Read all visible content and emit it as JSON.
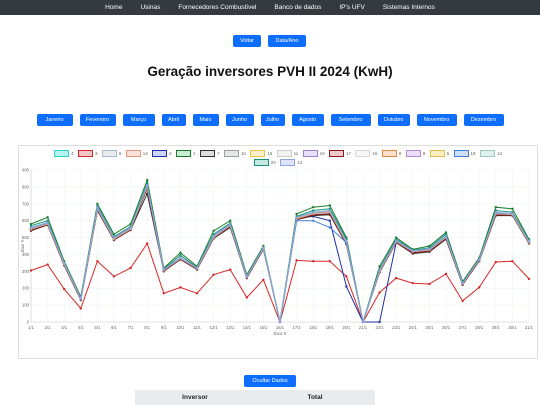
{
  "nav": [
    "Home",
    "Usinas",
    "Fornecedores Combustível",
    "Banco de dados",
    "IP's UFV",
    "Sistemas Internos"
  ],
  "buttons": {
    "voltar": "Voltar",
    "data_ano": "Data/Ano",
    "ocultar": "Ocultar Dados"
  },
  "page_title": "Geração inversores PVH II 2024 (KwH)",
  "months": [
    "Janeiro",
    "Fevereiro",
    "Março",
    "Abril",
    "Maio",
    "Junho",
    "Julho",
    "Agosto",
    "Setembro",
    "Outubro",
    "Novembro",
    "Dezembro"
  ],
  "table": {
    "headers": [
      "Inversor",
      "Total"
    ]
  },
  "colors": {
    "primary": "#0d6efd",
    "navbar": "#343a40"
  },
  "chart_data": {
    "type": "line",
    "xlabel": "Eixo X",
    "ylabel": "Eixo Y",
    "ylim": [
      0,
      900
    ],
    "yticks": [
      0,
      100,
      200,
      300,
      400,
      500,
      600,
      700,
      800,
      900
    ],
    "categories": [
      "1/1",
      "2/1",
      "3/1",
      "4/1",
      "5/1",
      "6/1",
      "7/1",
      "8/1",
      "9/1",
      "10/1",
      "11/1",
      "12/1",
      "13/1",
      "14/1",
      "15/1",
      "16/1",
      "17/1",
      "18/1",
      "19/1",
      "20/1",
      "21/1",
      "22/1",
      "23/1",
      "24/1",
      "25/1",
      "26/1",
      "27/1",
      "28/1",
      "29/1",
      "30/1",
      "31/1"
    ],
    "legend_position": "top",
    "series": [
      {
        "name": "4",
        "color": "#2dd4c8",
        "fill": "#b8f2ee",
        "values": [
          560,
          590,
          350,
          140,
          680,
          500,
          560,
          810,
          310,
          380,
          320,
          510,
          580,
          270,
          440,
          0,
          620,
          650,
          660,
          480,
          0,
          310,
          480,
          420,
          430,
          510,
          230,
          370,
          650,
          640,
          480
        ]
      },
      {
        "name": "3",
        "color": "#d62728",
        "fill": "#f5c6c6",
        "values": [
          305,
          340,
          195,
          80,
          360,
          270,
          320,
          465,
          170,
          205,
          170,
          280,
          310,
          145,
          250,
          0,
          365,
          360,
          360,
          270,
          0,
          175,
          260,
          230,
          225,
          285,
          125,
          205,
          355,
          360,
          255
        ]
      },
      {
        "name": "6",
        "color": "#aab7c4",
        "fill": "#e8edf2",
        "values": [
          550,
          580,
          340,
          135,
          670,
          490,
          550,
          800,
          305,
          375,
          315,
          500,
          570,
          265,
          435,
          0,
          610,
          640,
          650,
          470,
          0,
          300,
          475,
          415,
          425,
          500,
          225,
          365,
          640,
          635,
          470
        ]
      },
      {
        "name": "14",
        "color": "#e8927c",
        "fill": "#fbe3dc",
        "values": [
          545,
          578,
          338,
          133,
          668,
          488,
          548,
          798,
          303,
          373,
          313,
          498,
          568,
          263,
          433,
          0,
          608,
          638,
          648,
          468,
          0,
          298,
          473,
          413,
          423,
          498,
          223,
          363,
          638,
          633,
          468
        ]
      },
      {
        "name": "2",
        "color": "#1f2fa6",
        "fill": "#cfd4f2",
        "values": [
          555,
          585,
          345,
          138,
          675,
          495,
          555,
          805,
          308,
          378,
          318,
          505,
          575,
          268,
          438,
          0,
          615,
          625,
          600,
          210,
          0,
          0,
          470,
          410,
          420,
          505,
          228,
          368,
          645,
          638,
          475
        ]
      },
      {
        "name": "1",
        "color": "#1a7d2b",
        "fill": "#c9ecd0",
        "values": [
          580,
          620,
          360,
          150,
          700,
          520,
          580,
          840,
          320,
          410,
          330,
          540,
          600,
          280,
          450,
          0,
          640,
          680,
          690,
          500,
          0,
          330,
          500,
          430,
          450,
          530,
          240,
          380,
          680,
          670,
          490
        ]
      },
      {
        "name": "7",
        "color": "#333333",
        "fill": "#dddddd",
        "values": [
          540,
          575,
          335,
          130,
          660,
          485,
          545,
          760,
          300,
          370,
          310,
          495,
          560,
          260,
          430,
          0,
          605,
          630,
          635,
          460,
          0,
          295,
          470,
          405,
          415,
          490,
          220,
          360,
          630,
          630,
          465
        ]
      },
      {
        "name": "10",
        "color": "#9aa39a",
        "fill": "#e5e8e5",
        "values": [
          548,
          582,
          342,
          136,
          672,
          492,
          552,
          802,
          306,
          376,
          316,
          502,
          572,
          266,
          436,
          0,
          612,
          642,
          652,
          472,
          0,
          302,
          476,
          416,
          426,
          502,
          226,
          366,
          642,
          636,
          472
        ]
      },
      {
        "name": "16",
        "color": "#e6c44d",
        "fill": "#fbf0c9",
        "values": [
          552,
          584,
          344,
          137,
          674,
          494,
          554,
          804,
          307,
          377,
          317,
          504,
          574,
          267,
          437,
          0,
          614,
          644,
          654,
          474,
          0,
          304,
          478,
          418,
          428,
          504,
          227,
          367,
          644,
          637,
          474
        ]
      },
      {
        "name": "11",
        "color": "#cccccc",
        "fill": "#f2f2f2",
        "values": [
          546,
          579,
          339,
          134,
          669,
          489,
          549,
          799,
          304,
          374,
          314,
          499,
          569,
          264,
          434,
          0,
          609,
          639,
          649,
          469,
          0,
          299,
          474,
          414,
          424,
          499,
          224,
          364,
          639,
          634,
          469
        ]
      },
      {
        "name": "19",
        "color": "#9b7ed9",
        "fill": "#e8e0f7",
        "values": [
          547,
          580,
          340,
          135,
          670,
          490,
          550,
          800,
          305,
          375,
          315,
          500,
          570,
          265,
          435,
          0,
          610,
          640,
          650,
          470,
          0,
          300,
          475,
          415,
          425,
          500,
          225,
          365,
          640,
          635,
          470
        ]
      },
      {
        "name": "17",
        "color": "#8b1a1a",
        "fill": "#ecc9c9",
        "values": [
          544,
          576,
          336,
          132,
          664,
          486,
          546,
          790,
          302,
          372,
          312,
          496,
          566,
          262,
          432,
          0,
          606,
          634,
          640,
          464,
          0,
          296,
          472,
          410,
          420,
          494,
          222,
          362,
          634,
          632,
          466
        ]
      },
      {
        "name": "15",
        "color": "#d8d8d8",
        "fill": "#f5f5f5",
        "values": [
          549,
          581,
          341,
          136,
          671,
          491,
          551,
          801,
          306,
          376,
          316,
          501,
          571,
          266,
          436,
          0,
          611,
          641,
          651,
          471,
          0,
          301,
          476,
          416,
          426,
          501,
          226,
          366,
          641,
          636,
          471
        ]
      },
      {
        "name": "8",
        "color": "#e8883a",
        "fill": "#fbe1cc",
        "values": [
          551,
          583,
          343,
          137,
          673,
          493,
          553,
          803,
          307,
          377,
          317,
          503,
          573,
          267,
          437,
          0,
          613,
          643,
          653,
          473,
          0,
          303,
          477,
          417,
          427,
          503,
          227,
          367,
          643,
          637,
          473
        ]
      },
      {
        "name": "9",
        "color": "#b58ad6",
        "fill": "#eddff7",
        "values": [
          553,
          585,
          345,
          138,
          675,
          495,
          555,
          805,
          308,
          378,
          318,
          505,
          575,
          268,
          438,
          0,
          615,
          645,
          655,
          475,
          0,
          305,
          479,
          419,
          429,
          505,
          228,
          368,
          645,
          638,
          475
        ]
      },
      {
        "name": "5",
        "color": "#e0c04a",
        "fill": "#f9eec4",
        "values": [
          554,
          586,
          346,
          139,
          676,
          496,
          556,
          806,
          309,
          379,
          319,
          506,
          576,
          269,
          439,
          0,
          616,
          646,
          656,
          476,
          0,
          306,
          480,
          420,
          430,
          506,
          229,
          369,
          646,
          639,
          476
        ]
      },
      {
        "name": "18",
        "color": "#3d7fd6",
        "fill": "#cfe0f6",
        "values": [
          556,
          587,
          347,
          139,
          677,
          497,
          557,
          807,
          309,
          379,
          319,
          507,
          577,
          269,
          439,
          0,
          600,
          600,
          560,
          470,
          0,
          307,
          480,
          420,
          430,
          507,
          229,
          369,
          647,
          640,
          477
        ]
      },
      {
        "name": "13",
        "color": "#9fc9c4",
        "fill": "#e0f0ee",
        "values": [
          557,
          588,
          348,
          140,
          678,
          498,
          558,
          808,
          310,
          380,
          320,
          508,
          578,
          270,
          440,
          0,
          618,
          648,
          658,
          478,
          0,
          308,
          481,
          421,
          431,
          508,
          230,
          370,
          648,
          641,
          478
        ]
      },
      {
        "name": "20",
        "color": "#1a8f7a",
        "fill": "#c4eae3",
        "values": [
          570,
          600,
          352,
          142,
          690,
          505,
          565,
          820,
          312,
          395,
          322,
          520,
          585,
          272,
          442,
          0,
          625,
          660,
          670,
          490,
          0,
          315,
          490,
          425,
          440,
          520,
          232,
          372,
          660,
          650,
          485
        ]
      },
      {
        "name": "12",
        "color": "#8fa3e0",
        "fill": "#dde4f8",
        "values": [
          558,
          589,
          349,
          140,
          679,
          499,
          559,
          809,
          310,
          380,
          320,
          509,
          579,
          270,
          440,
          0,
          619,
          649,
          659,
          479,
          0,
          309,
          482,
          422,
          432,
          509,
          230,
          370,
          649,
          642,
          479
        ]
      }
    ]
  }
}
